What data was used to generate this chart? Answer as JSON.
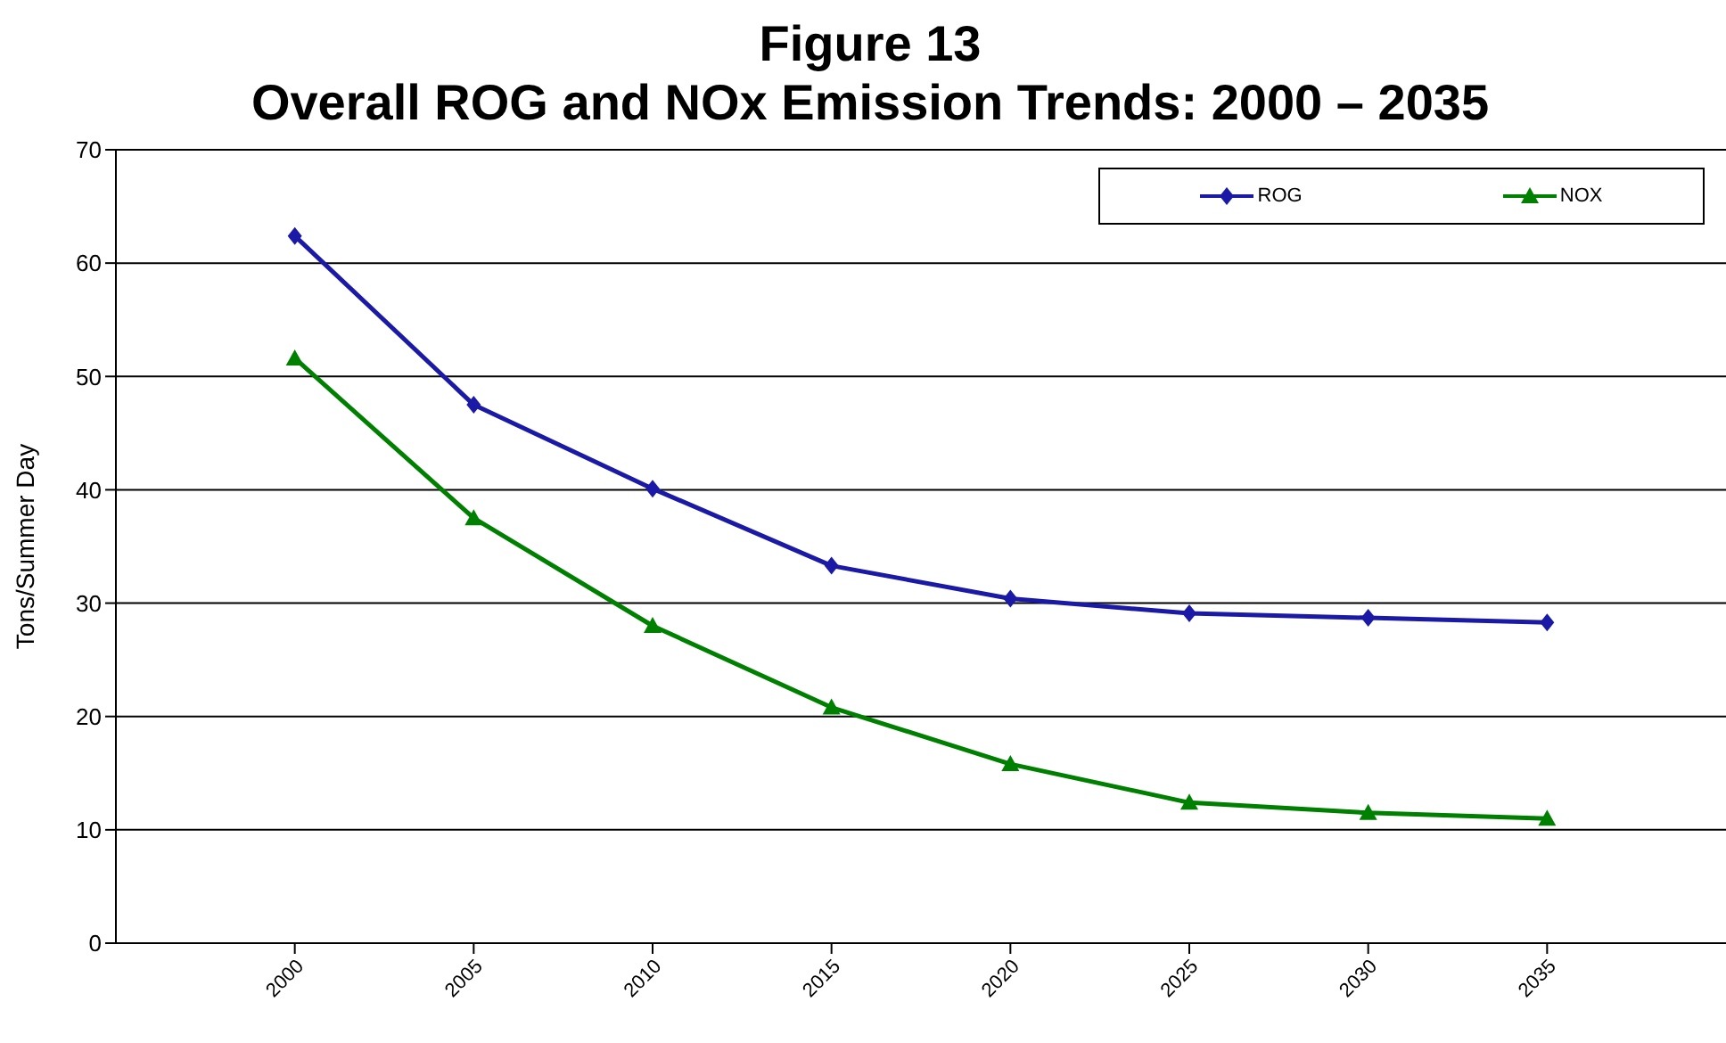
{
  "chart_data": {
    "type": "line",
    "title": "Figure 13",
    "subtitle": "Overall ROG and NOx Emission Trends:  2000 – 2035",
    "ylabel": "Tons/Summer Day",
    "categories": [
      "2000",
      "2005",
      "2010",
      "2015",
      "2020",
      "2025",
      "2030",
      "2035"
    ],
    "series": [
      {
        "name": "ROG",
        "color": "#1a1aa6",
        "marker": "diamond",
        "values": [
          62.4,
          47.5,
          40.1,
          33.3,
          30.4,
          29.1,
          28.7,
          28.3
        ]
      },
      {
        "name": "NOX",
        "color": "#008000",
        "marker": "triangle",
        "values": [
          51.6,
          37.5,
          28.0,
          20.8,
          15.8,
          12.4,
          11.5,
          11.0
        ]
      }
    ],
    "ylim": [
      0,
      70
    ],
    "yticks": [
      0,
      10,
      20,
      30,
      40,
      50,
      60,
      70
    ],
    "grid": "y",
    "legend": "top right"
  }
}
